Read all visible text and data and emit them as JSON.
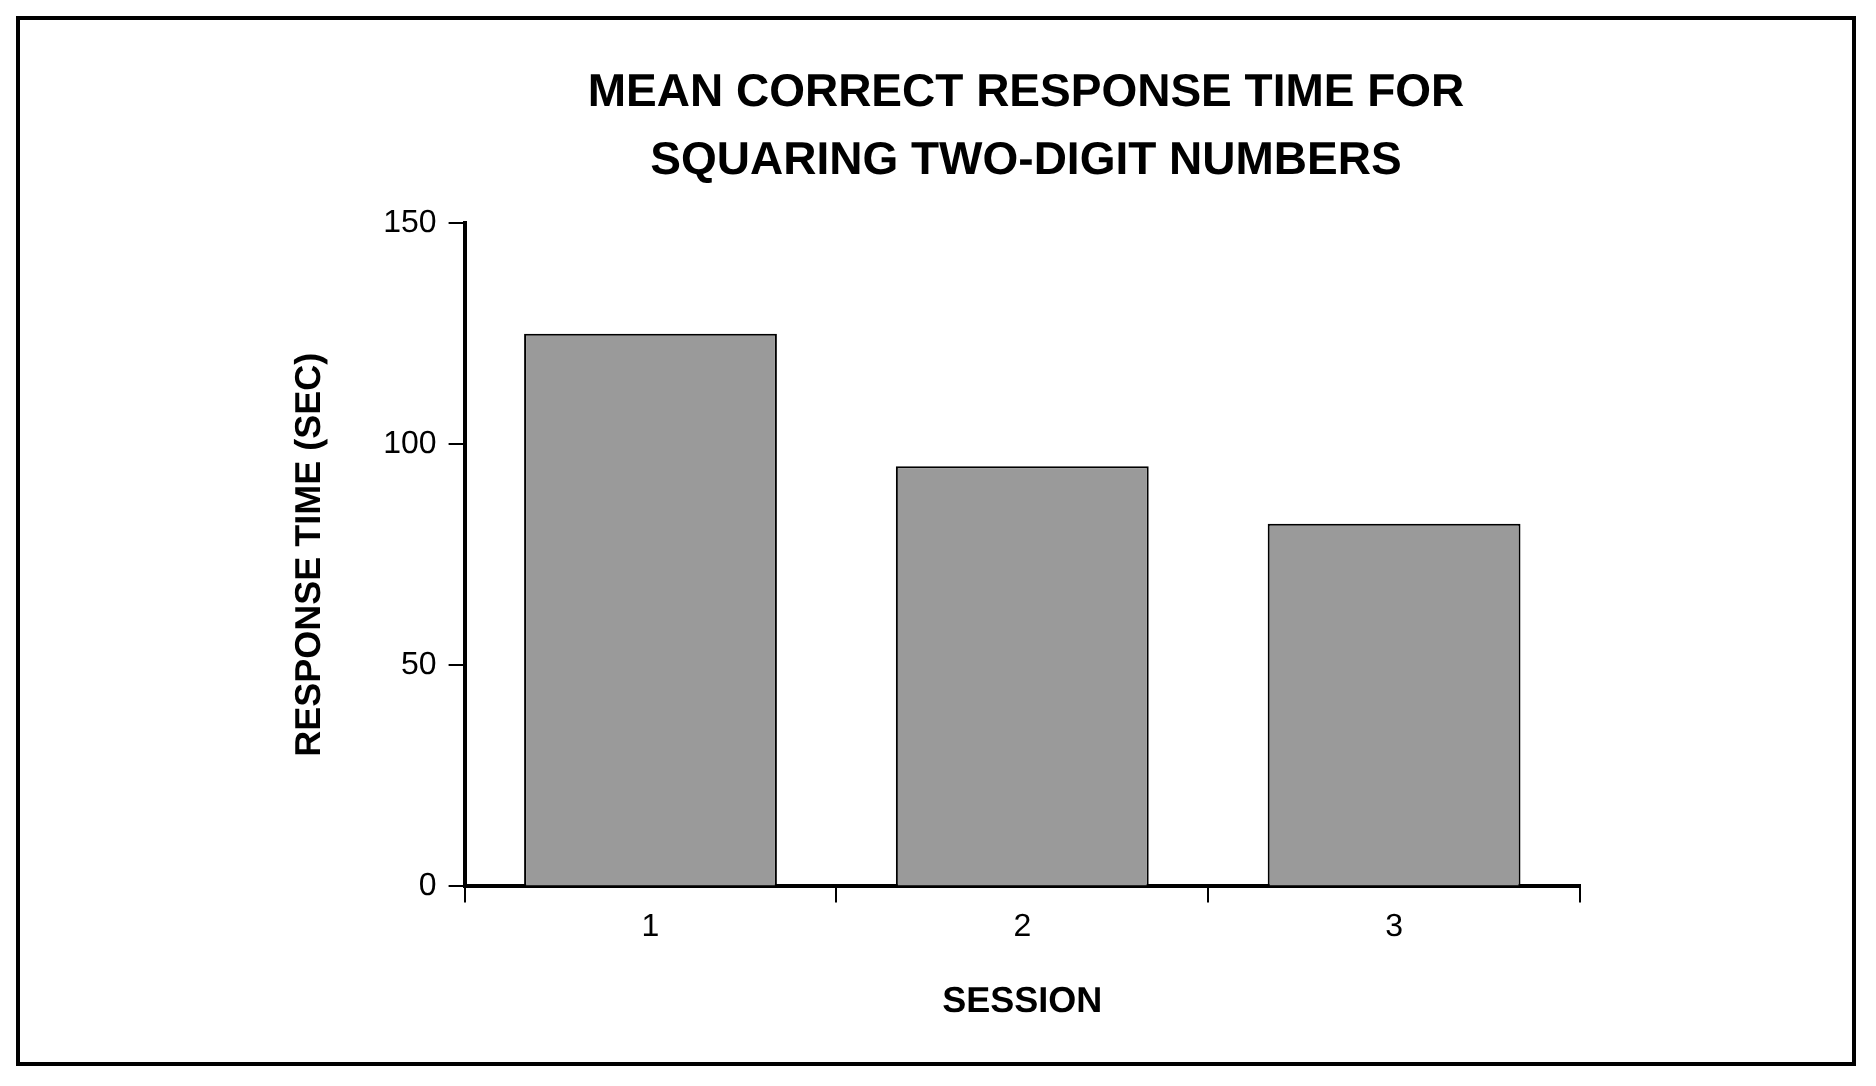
{
  "chart_data": {
    "type": "bar",
    "title": "MEAN CORRECT RESPONSE TIME FOR SQUARING TWO-DIGIT NUMBERS",
    "xlabel": "SESSION",
    "ylabel": "RESPONSE TIME (SEC)",
    "categories": [
      "1",
      "2",
      "3"
    ],
    "values": [
      125,
      95,
      82
    ],
    "color": "#9a9a9a",
    "ylim": [
      0,
      150
    ],
    "yticks": [
      0,
      50,
      100,
      150
    ]
  }
}
